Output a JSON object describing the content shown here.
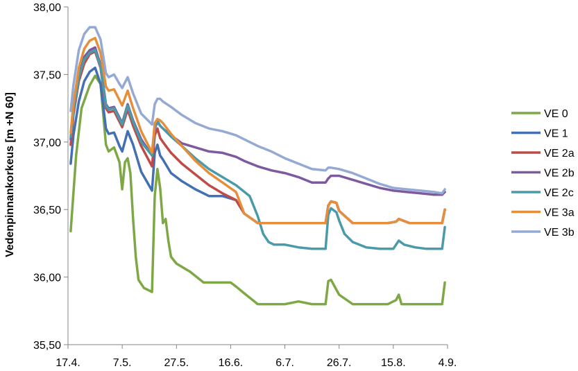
{
  "chart_data": {
    "type": "line",
    "title": "",
    "xlabel": "",
    "ylabel": "Vedenpinnankorkeus [m +N 60]",
    "x_ticks": [
      "17.4.",
      "7.5.",
      "27.5.",
      "16.6.",
      "6.7.",
      "26.7.",
      "15.8.",
      "4.9."
    ],
    "y_ticks": [
      "35,50",
      "36,00",
      "36,50",
      "37,00",
      "37,50",
      "38,00"
    ],
    "ylim": [
      35.5,
      38.0
    ],
    "x_range_days": [
      0,
      140
    ],
    "grid": false,
    "legend_position": "right",
    "series": [
      {
        "name": "VE 0",
        "color": "#7ea845",
        "x": [
          1,
          3,
          5,
          8,
          10,
          12,
          14,
          15,
          17,
          19,
          20,
          21,
          22,
          23,
          24,
          25,
          26,
          28,
          31,
          32,
          33,
          34,
          35,
          36,
          37,
          38,
          40,
          45,
          50,
          55,
          60,
          62,
          65,
          70,
          75,
          80,
          85,
          90,
          95,
          96,
          97,
          100,
          105,
          110,
          115,
          118,
          121,
          122,
          123,
          127,
          130,
          134,
          135,
          138,
          139
        ],
        "y": [
          36.34,
          36.9,
          37.25,
          37.42,
          37.49,
          37.43,
          36.98,
          36.93,
          36.96,
          36.85,
          36.65,
          36.85,
          36.88,
          36.77,
          36.43,
          36.15,
          35.98,
          35.92,
          35.89,
          36.6,
          36.8,
          36.66,
          36.4,
          36.43,
          36.27,
          36.15,
          36.1,
          36.04,
          35.96,
          35.96,
          35.96,
          35.93,
          35.88,
          35.8,
          35.8,
          35.8,
          35.82,
          35.8,
          35.8,
          35.97,
          35.98,
          35.87,
          35.8,
          35.8,
          35.8,
          35.8,
          35.83,
          35.87,
          35.8,
          35.8,
          35.8,
          35.8,
          35.8,
          35.8,
          35.96
        ]
      },
      {
        "name": "VE 1",
        "color": "#4270b3",
        "x": [
          1,
          2,
          4,
          6,
          8,
          10,
          12,
          14,
          15,
          17,
          19,
          20,
          22,
          24,
          27,
          31,
          32,
          33,
          34,
          35,
          38,
          42,
          47,
          52,
          57,
          62,
          65,
          70,
          75,
          80,
          85,
          90,
          95,
          96,
          97,
          99,
          100,
          105,
          110,
          115,
          118,
          121,
          122,
          126,
          130,
          134,
          138,
          139
        ],
        "y": [
          36.84,
          37.05,
          37.3,
          37.45,
          37.52,
          37.55,
          37.43,
          37.1,
          37.06,
          37.07,
          36.97,
          36.93,
          37.08,
          36.98,
          36.78,
          36.64,
          36.92,
          36.98,
          36.9,
          36.87,
          36.77,
          36.71,
          36.65,
          36.6,
          36.6,
          36.57,
          36.47,
          36.4,
          36.4,
          36.4,
          36.4,
          36.4,
          36.4,
          36.53,
          36.56,
          36.55,
          36.49,
          36.4,
          36.4,
          36.4,
          36.4,
          36.41,
          36.43,
          36.4,
          36.4,
          36.4,
          36.4,
          36.5
        ]
      },
      {
        "name": "VE 2a",
        "color": "#be4b48",
        "x": [
          1,
          2,
          4,
          6,
          8,
          10,
          12,
          14,
          15,
          17,
          19,
          20,
          22,
          24,
          27,
          31,
          32,
          33,
          34,
          35,
          38,
          42,
          47,
          52,
          57,
          62,
          65,
          70,
          75,
          80,
          85,
          90,
          95,
          96,
          97,
          99,
          100,
          105,
          110,
          115,
          118,
          121,
          122,
          126,
          130,
          134,
          138,
          139
        ],
        "y": [
          36.98,
          37.2,
          37.45,
          37.58,
          37.65,
          37.67,
          37.55,
          37.25,
          37.22,
          37.23,
          37.15,
          37.11,
          37.24,
          37.12,
          36.97,
          36.82,
          37.05,
          37.1,
          37.03,
          37.0,
          36.92,
          36.84,
          36.76,
          36.68,
          36.62,
          36.57,
          36.47,
          36.4,
          36.4,
          36.4,
          36.4,
          36.4,
          36.4,
          36.53,
          36.56,
          36.55,
          36.49,
          36.4,
          36.4,
          36.4,
          36.4,
          36.41,
          36.43,
          36.4,
          36.4,
          36.4,
          36.4,
          36.5
        ]
      },
      {
        "name": "VE 2b",
        "color": "#7d5a9f",
        "x": [
          1,
          2,
          4,
          6,
          8,
          10,
          12,
          14,
          15,
          17,
          19,
          20,
          22,
          24,
          27,
          31,
          32,
          33,
          34,
          35,
          38,
          42,
          47,
          52,
          57,
          62,
          65,
          70,
          75,
          80,
          85,
          90,
          95,
          96,
          97,
          100,
          105,
          110,
          115,
          120,
          125,
          130,
          135,
          138,
          139
        ],
        "y": [
          37.02,
          37.23,
          37.5,
          37.63,
          37.68,
          37.7,
          37.57,
          37.28,
          37.25,
          37.26,
          37.18,
          37.14,
          37.28,
          37.16,
          37.02,
          36.9,
          37.1,
          37.15,
          37.12,
          37.1,
          37.05,
          36.99,
          36.96,
          36.93,
          36.92,
          36.89,
          36.86,
          36.82,
          36.79,
          36.77,
          36.74,
          36.7,
          36.7,
          36.73,
          36.75,
          36.75,
          36.72,
          36.69,
          36.66,
          36.64,
          36.63,
          36.62,
          36.61,
          36.61,
          36.63
        ]
      },
      {
        "name": "VE 2c",
        "color": "#4a9aaa",
        "x": [
          1,
          2,
          4,
          6,
          8,
          10,
          12,
          14,
          15,
          17,
          19,
          20,
          22,
          24,
          27,
          31,
          32,
          33,
          34,
          35,
          38,
          42,
          47,
          52,
          57,
          62,
          67,
          70,
          72,
          74,
          76,
          80,
          85,
          90,
          95,
          96,
          97,
          99,
          100,
          102,
          105,
          110,
          115,
          120,
          121,
          122,
          124,
          128,
          132,
          137,
          138,
          139
        ],
        "y": [
          37.04,
          37.22,
          37.48,
          37.61,
          37.66,
          37.68,
          37.56,
          37.27,
          37.24,
          37.25,
          37.17,
          37.13,
          37.27,
          37.15,
          37.0,
          36.9,
          37.11,
          37.16,
          37.12,
          37.1,
          37.04,
          36.97,
          36.88,
          36.8,
          36.74,
          36.68,
          36.6,
          36.45,
          36.32,
          36.26,
          36.24,
          36.24,
          36.22,
          36.21,
          36.21,
          36.46,
          36.51,
          36.48,
          36.42,
          36.32,
          36.26,
          36.22,
          36.21,
          36.21,
          36.24,
          36.27,
          36.24,
          36.22,
          36.21,
          36.21,
          36.21,
          36.37
        ]
      },
      {
        "name": "VE 3a",
        "color": "#e58f3c",
        "x": [
          1,
          2,
          4,
          6,
          8,
          10,
          12,
          14,
          15,
          17,
          19,
          20,
          22,
          24,
          27,
          31,
          32,
          33,
          34,
          35,
          38,
          42,
          47,
          52,
          57,
          62,
          65,
          70,
          75,
          80,
          85,
          90,
          95,
          96,
          97,
          99,
          100,
          105,
          110,
          115,
          118,
          121,
          122,
          126,
          130,
          134,
          138,
          139
        ],
        "y": [
          37.07,
          37.28,
          37.55,
          37.69,
          37.75,
          37.77,
          37.66,
          37.41,
          37.38,
          37.39,
          37.31,
          37.27,
          37.38,
          37.25,
          37.08,
          36.92,
          37.14,
          37.17,
          37.16,
          37.14,
          37.06,
          36.97,
          36.86,
          36.77,
          36.7,
          36.63,
          36.47,
          36.4,
          36.4,
          36.4,
          36.4,
          36.4,
          36.4,
          36.53,
          36.56,
          36.55,
          36.49,
          36.4,
          36.4,
          36.4,
          36.4,
          36.41,
          36.43,
          36.4,
          36.4,
          36.4,
          36.4,
          36.5
        ]
      },
      {
        "name": "VE 3b",
        "color": "#94a9d3",
        "x": [
          1,
          2,
          4,
          6,
          8,
          10,
          12,
          14,
          15,
          17,
          19,
          20,
          22,
          24,
          27,
          31,
          32,
          33,
          34,
          35,
          38,
          42,
          47,
          52,
          57,
          62,
          65,
          70,
          75,
          80,
          85,
          90,
          95,
          96,
          97,
          100,
          105,
          110,
          115,
          120,
          125,
          130,
          135,
          138,
          139
        ],
        "y": [
          37.23,
          37.42,
          37.68,
          37.8,
          37.85,
          37.85,
          37.76,
          37.51,
          37.48,
          37.5,
          37.43,
          37.4,
          37.48,
          37.36,
          37.21,
          37.13,
          37.28,
          37.32,
          37.32,
          37.3,
          37.26,
          37.2,
          37.14,
          37.1,
          37.08,
          37.05,
          37.02,
          36.97,
          36.93,
          36.88,
          36.84,
          36.8,
          36.79,
          36.81,
          36.81,
          36.8,
          36.77,
          36.73,
          36.69,
          36.66,
          36.65,
          36.64,
          36.63,
          36.62,
          36.65
        ]
      }
    ]
  }
}
